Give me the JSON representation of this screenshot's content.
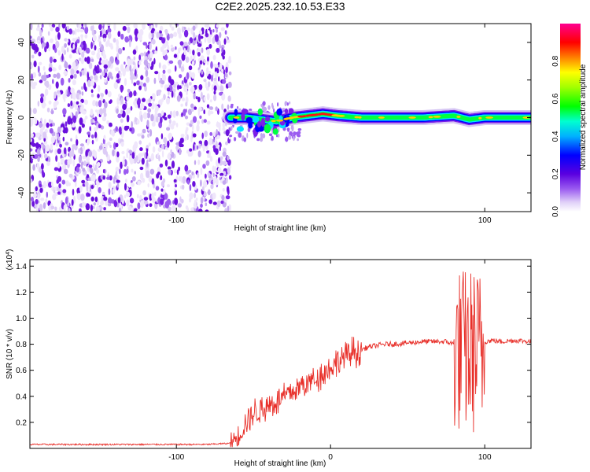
{
  "title": "C2E2.2025.232.10.53.E33",
  "chart_data": [
    {
      "type": "heatmap",
      "xlabel": "Height of straight line (km)",
      "ylabel": "Frequency (Hz)",
      "xlim": [
        -195,
        130
      ],
      "ylim": [
        -50,
        50
      ],
      "x_ticks": [
        -100,
        100
      ],
      "x_tick_labels": [
        "-100",
        "100"
      ],
      "y_ticks": [
        -40,
        -20,
        0,
        20,
        40
      ],
      "y_tick_labels": [
        "-40",
        "-20",
        "0",
        "20",
        "40"
      ],
      "noise_region_x": [
        -195,
        -65
      ],
      "signal_track": {
        "x": [
          -65,
          -55,
          -45,
          -35,
          -25,
          -15,
          -5,
          5,
          20,
          40,
          60,
          80,
          90,
          100,
          115,
          130
        ],
        "frequency": [
          0,
          0,
          -1,
          -2,
          0,
          1,
          2,
          1,
          0,
          0,
          0,
          1,
          -1,
          0,
          0,
          0
        ],
        "normalized_amplitude": [
          0.4,
          0.5,
          0.5,
          0.6,
          0.8,
          0.9,
          0.95,
          0.8,
          0.6,
          0.55,
          0.55,
          0.6,
          0.7,
          0.6,
          0.55,
          0.5
        ]
      },
      "colorbar": {
        "label": "Normalized spectral amplitude",
        "range": [
          0.0,
          1.0
        ],
        "ticks": [
          0.0,
          0.2,
          0.4,
          0.6,
          0.8
        ],
        "tick_labels": [
          "0.0",
          "0.2",
          "0.4",
          "0.6",
          "0.8"
        ],
        "colors": [
          "#ffffff",
          "#d6c6f4",
          "#7b1fe8",
          "#0000ff",
          "#00ffff",
          "#00ff00",
          "#ffff00",
          "#ff0000",
          "#ff00aa"
        ]
      }
    },
    {
      "type": "line",
      "xlabel": "Height of straight line (km)",
      "ylabel": "SNR (10 * v/v)",
      "y_multiplier": "(x10",
      "y_multiplier_exp": "4",
      "xlim": [
        -195,
        130
      ],
      "ylim": [
        0,
        1.45
      ],
      "x_ticks": [
        -100,
        0,
        100
      ],
      "x_tick_labels": [
        "-100",
        "0",
        "100"
      ],
      "y_ticks": [
        0.2,
        0.4,
        0.6,
        0.8,
        1.0,
        1.2,
        1.4
      ],
      "y_tick_labels": [
        "0.2",
        "0.4",
        "0.6",
        "0.8",
        "1.0",
        "1.2",
        "1.4"
      ],
      "series_color": "#e8302a",
      "x": [
        -195,
        -170,
        -140,
        -110,
        -80,
        -65,
        -60,
        -55,
        -50,
        -45,
        -40,
        -35,
        -30,
        -25,
        -20,
        -15,
        -10,
        -5,
        0,
        5,
        10,
        15,
        20,
        25,
        30,
        35,
        40,
        50,
        60,
        70,
        75,
        80,
        83,
        86,
        89,
        92,
        95,
        98,
        100,
        105,
        110,
        120,
        130
      ],
      "y": [
        0.03,
        0.03,
        0.03,
        0.03,
        0.03,
        0.04,
        0.1,
        0.2,
        0.27,
        0.3,
        0.33,
        0.36,
        0.4,
        0.43,
        0.47,
        0.5,
        0.54,
        0.58,
        0.62,
        0.67,
        0.71,
        0.74,
        0.76,
        0.78,
        0.79,
        0.8,
        0.8,
        0.81,
        0.82,
        0.82,
        0.82,
        0.8,
        1.0,
        0.3,
        1.15,
        0.2,
        1.4,
        0.1,
        0.82,
        0.83,
        0.82,
        0.83,
        0.82
      ]
    }
  ]
}
